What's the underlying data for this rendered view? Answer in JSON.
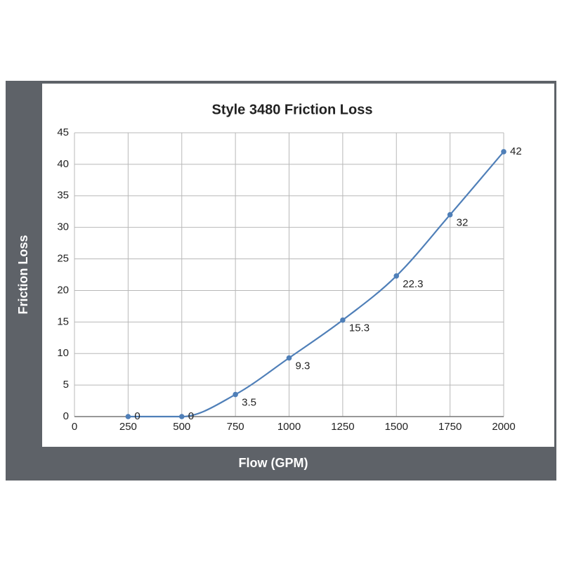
{
  "chart_data": {
    "type": "line",
    "title": "Style 3480 Friction Loss",
    "x_label": "Flow (GPM)",
    "y_label": "Friction Loss",
    "x": [
      250,
      500,
      750,
      1000,
      1250,
      1500,
      1750,
      2000
    ],
    "series": [
      {
        "name": "Friction Loss",
        "color": "#4f7fb8",
        "values": [
          0,
          0,
          3.5,
          9.3,
          15.3,
          22.3,
          32,
          42
        ]
      }
    ],
    "xlim": [
      0,
      2000
    ],
    "xticks": [
      0,
      250,
      500,
      750,
      1000,
      1250,
      1500,
      1750,
      2000
    ],
    "ylim": [
      0,
      45
    ],
    "yticks": [
      0,
      5,
      10,
      15,
      20,
      25,
      30,
      35,
      40,
      45
    ],
    "grid": true,
    "smooth": true,
    "data_labels": true
  }
}
